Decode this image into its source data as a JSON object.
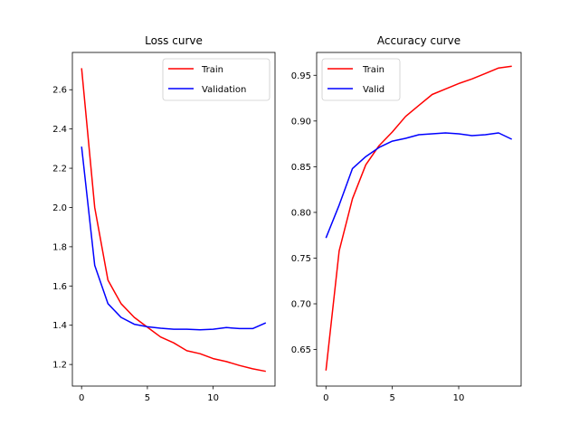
{
  "chart_data": [
    {
      "type": "line",
      "title": "Loss curve",
      "xlabel": "",
      "ylabel": "",
      "xlim": [
        -0.7,
        14.7
      ],
      "ylim": [
        1.09,
        2.79
      ],
      "xticks": [
        0,
        5,
        10
      ],
      "yticks": [
        1.2,
        1.4,
        1.6,
        1.8,
        2.0,
        2.2,
        2.4,
        2.6
      ],
      "ytick_labels": [
        "1.2",
        "1.4",
        "1.6",
        "1.8",
        "2.0",
        "2.2",
        "2.4",
        "2.6"
      ],
      "legend_position": "upper right",
      "x": [
        0,
        1,
        2,
        3,
        4,
        5,
        6,
        7,
        8,
        9,
        10,
        11,
        12,
        13,
        14
      ],
      "series": [
        {
          "name": "Train",
          "color": "#ff0000",
          "values": [
            2.71,
            2.0,
            1.63,
            1.51,
            1.44,
            1.39,
            1.34,
            1.31,
            1.27,
            1.255,
            1.23,
            1.215,
            1.195,
            1.178,
            1.165
          ]
        },
        {
          "name": "Validation",
          "color": "#0000ff",
          "values": [
            2.31,
            1.705,
            1.51,
            1.44,
            1.405,
            1.392,
            1.385,
            1.38,
            1.38,
            1.377,
            1.38,
            1.388,
            1.383,
            1.383,
            1.412
          ]
        }
      ]
    },
    {
      "type": "line",
      "title": "Accuracy curve",
      "xlabel": "",
      "ylabel": "",
      "xlim": [
        -0.7,
        14.7
      ],
      "ylim": [
        0.61,
        0.975
      ],
      "xticks": [
        0,
        5,
        10
      ],
      "yticks": [
        0.65,
        0.7,
        0.75,
        0.8,
        0.85,
        0.9,
        0.95
      ],
      "ytick_labels": [
        "0.65",
        "0.70",
        "0.75",
        "0.80",
        "0.85",
        "0.90",
        "0.95"
      ],
      "legend_position": "upper left",
      "x": [
        0,
        1,
        2,
        3,
        4,
        5,
        6,
        7,
        8,
        9,
        10,
        11,
        12,
        13,
        14
      ],
      "series": [
        {
          "name": "Train",
          "color": "#ff0000",
          "values": [
            0.627,
            0.758,
            0.815,
            0.852,
            0.873,
            0.888,
            0.905,
            0.917,
            0.929,
            0.935,
            0.941,
            0.946,
            0.952,
            0.958,
            0.96
          ]
        },
        {
          "name": "Valid",
          "color": "#0000ff",
          "values": [
            0.772,
            0.808,
            0.848,
            0.861,
            0.871,
            0.878,
            0.881,
            0.885,
            0.886,
            0.887,
            0.886,
            0.884,
            0.885,
            0.887,
            0.88
          ]
        }
      ]
    }
  ]
}
